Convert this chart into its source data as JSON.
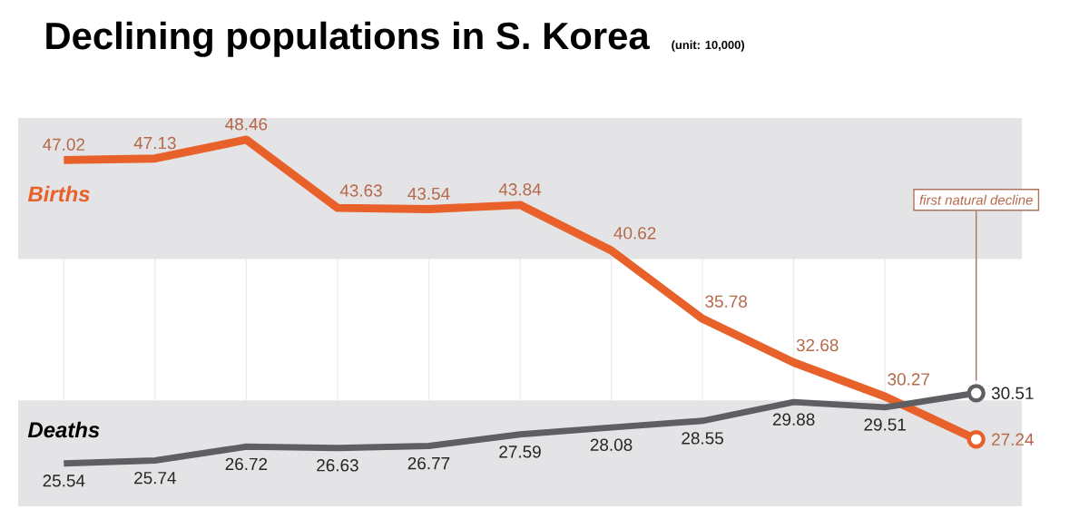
{
  "chart_data": {
    "type": "line",
    "title": "Declining populations in S. Korea",
    "subtitle": "(unit: 10,000)",
    "categories": [
      null,
      null,
      null,
      null,
      null,
      null,
      null,
      null,
      null,
      null,
      null
    ],
    "series": [
      {
        "name": "Births",
        "color": "#e8602a",
        "values": [
          47.02,
          47.13,
          48.46,
          43.63,
          43.54,
          43.84,
          40.62,
          35.78,
          32.68,
          30.27,
          27.24
        ]
      },
      {
        "name": "Deaths",
        "color": "#5f5f63",
        "values": [
          25.54,
          25.74,
          26.72,
          26.63,
          26.77,
          27.59,
          28.08,
          28.55,
          29.88,
          29.51,
          30.51
        ]
      }
    ],
    "bands": [
      {
        "axis": "y",
        "from": 40,
        "to": 50,
        "color": "#e4e4e6"
      },
      {
        "axis": "y",
        "from": 22.5,
        "to": 30,
        "color": "#e4e4e6"
      }
    ],
    "annotations": [
      "first natural decline"
    ],
    "data_labels": true,
    "grid": "x"
  }
}
